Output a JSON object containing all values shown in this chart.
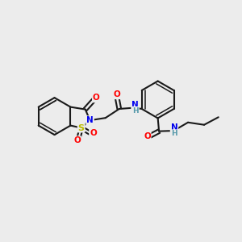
{
  "bg_color": "#ececec",
  "bond_color": "#1a1a1a",
  "atom_colors": {
    "O": "#ff0000",
    "N": "#0000ee",
    "S": "#bbbb00",
    "H": "#5599aa"
  },
  "figsize": [
    3.0,
    3.0
  ],
  "dpi": 100
}
